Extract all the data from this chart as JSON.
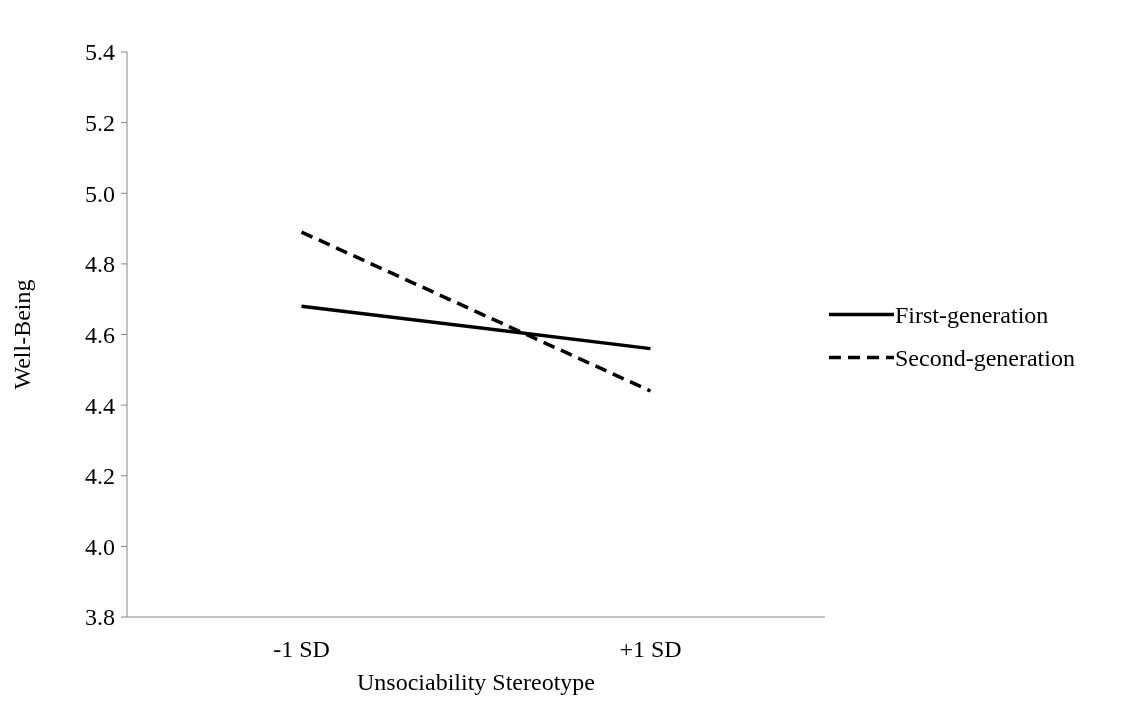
{
  "chart_data": {
    "type": "line",
    "xlabel": "Unsociability Stereotype",
    "ylabel": "Well-Being",
    "categories": [
      "-1 SD",
      "+1 SD"
    ],
    "series": [
      {
        "name": "First-generation",
        "color": "#000000",
        "values": [
          4.68,
          4.56
        ],
        "line_style": "solid"
      },
      {
        "name": "Second-generation",
        "color": "#000000",
        "values": [
          4.89,
          4.44
        ],
        "line_style": "dashed"
      }
    ],
    "ylim": [
      3.8,
      5.4
    ],
    "yticks": [
      3.8,
      {
        "value": 4,
        "label": "4.0"
      },
      4.2,
      4.4,
      4.6,
      4.8,
      {
        "value": 5,
        "label": "5.0"
      },
      5.2,
      5.4
    ],
    "grid": false,
    "legend": "right",
    "marker": "none"
  }
}
